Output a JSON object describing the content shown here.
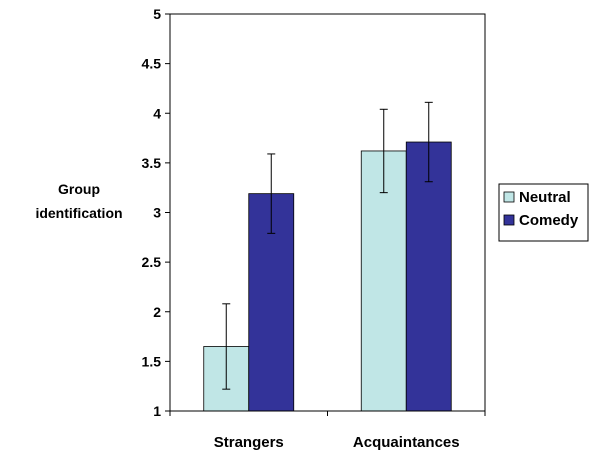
{
  "chart_data": {
    "type": "bar",
    "title": "",
    "xlabel": "",
    "ylabel": [
      "Group",
      "identification"
    ],
    "categories": [
      "Strangers",
      "Acquaintances"
    ],
    "ylim": [
      1,
      5
    ],
    "yticks": [
      "1",
      "1.5",
      "2",
      "2.5",
      "3",
      "3.5",
      "4",
      "4.5",
      "5"
    ],
    "grid": false,
    "legend_position": "right",
    "series": [
      {
        "name": "Neutral",
        "color": "#c0e6e6",
        "values": [
          1.65,
          3.62
        ],
        "error": [
          0.43,
          0.42
        ]
      },
      {
        "name": "Comedy",
        "color": "#333399",
        "values": [
          3.19,
          3.71
        ],
        "error": [
          0.4,
          0.4
        ]
      }
    ]
  }
}
